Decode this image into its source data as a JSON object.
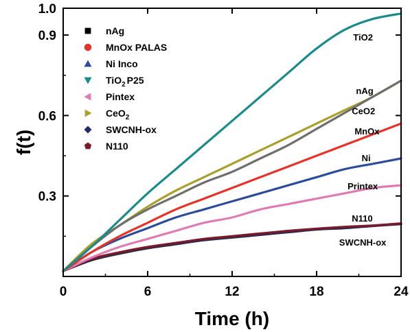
{
  "chart_data": {
    "type": "line",
    "title": "",
    "xlabel": "Time (h)",
    "ylabel": "f(t)",
    "xlim": [
      0,
      24
    ],
    "ylim": [
      0,
      1.0
    ],
    "xticks": [
      "0",
      "6",
      "12",
      "18",
      "24"
    ],
    "xtick_values": [
      0,
      6,
      12,
      18,
      24
    ],
    "yticks": [
      "0.3",
      "0.6",
      "0.9",
      "1.0"
    ],
    "ytick_values": [
      0.3,
      0.6,
      0.9,
      1.0
    ],
    "grid": false,
    "legend_position": "top-left",
    "x": [
      0,
      2,
      4,
      6,
      8,
      10,
      12,
      14,
      16,
      18,
      20,
      22,
      24
    ],
    "series": [
      {
        "name": "nAg",
        "marker": "square",
        "color": "#000000",
        "line_color": "#6e6e6e",
        "values": [
          0.02,
          0.11,
          0.19,
          0.25,
          0.3,
          0.35,
          0.39,
          0.44,
          0.49,
          0.55,
          0.61,
          0.67,
          0.73
        ]
      },
      {
        "name": "MnOx PALAS",
        "marker": "circle",
        "color": "#e5332a",
        "line_color": "#e5332a",
        "values": [
          0.02,
          0.09,
          0.15,
          0.2,
          0.25,
          0.29,
          0.33,
          0.37,
          0.41,
          0.45,
          0.49,
          0.53,
          0.57
        ]
      },
      {
        "name": "Ni Inco",
        "marker": "triangle-up",
        "color": "#2b4c9b",
        "line_color": "#2b4c9b",
        "values": [
          0.02,
          0.09,
          0.14,
          0.18,
          0.22,
          0.25,
          0.28,
          0.31,
          0.34,
          0.37,
          0.4,
          0.42,
          0.44
        ]
      },
      {
        "name": "TiO2 P25",
        "marker": "triangle-down",
        "color": "#1a8a8a",
        "line_color": "#1a8a8a",
        "values": [
          0.02,
          0.11,
          0.21,
          0.31,
          0.4,
          0.49,
          0.58,
          0.67,
          0.76,
          0.85,
          0.92,
          0.96,
          0.98
        ]
      },
      {
        "name": "Pintex",
        "marker": "triangle-left",
        "color": "#e07ab3",
        "line_color": "#e07ab3",
        "values": [
          0.02,
          0.07,
          0.11,
          0.14,
          0.17,
          0.2,
          0.22,
          0.25,
          0.27,
          0.29,
          0.31,
          0.33,
          0.34
        ]
      },
      {
        "name": "CeO2",
        "marker": "triangle-right",
        "color": "#a8a02a",
        "line_color": "#a8a02a",
        "values": [
          0.02,
          0.12,
          0.19,
          0.26,
          0.32,
          0.37,
          0.42,
          0.47,
          0.52,
          0.57,
          0.62,
          0.67,
          0.73
        ]
      },
      {
        "name": "SWCNH-ox",
        "marker": "diamond",
        "color": "#1f2a6b",
        "line_color": "#2a2a4a",
        "values": [
          0.02,
          0.06,
          0.085,
          0.105,
          0.12,
          0.135,
          0.145,
          0.155,
          0.165,
          0.175,
          0.18,
          0.188,
          0.195
        ]
      },
      {
        "name": "N110",
        "marker": "pentagon",
        "color": "#7a1a2a",
        "line_color": "#7a1a2a",
        "values": [
          0.02,
          0.065,
          0.09,
          0.11,
          0.125,
          0.14,
          0.15,
          0.16,
          0.17,
          0.178,
          0.185,
          0.19,
          0.198
        ]
      }
    ],
    "legend_labels": {
      "nAg": "nAg",
      "MnOx PALAS": "MnOx PALAS",
      "Ni Inco": "Ni Inco",
      "TiO2 P25": "TiO",
      "TiO2 P25_sub": "2",
      "TiO2 P25_tail": "P25",
      "Pintex": "Pintex",
      "CeO2": "CeO",
      "CeO2_sub": "2",
      "SWCNH-ox": "SWCNH-ox",
      "N110": "N110"
    },
    "annotations": [
      {
        "text": "TiO2",
        "x": 20.6,
        "y": 0.88
      },
      {
        "text": "nAg",
        "x": 20.8,
        "y": 0.68
      },
      {
        "text": "CeO2",
        "x": 20.5,
        "y": 0.605
      },
      {
        "text": "MnOx",
        "x": 20.7,
        "y": 0.53
      },
      {
        "text": "Ni",
        "x": 21.2,
        "y": 0.43
      },
      {
        "text": "Printex",
        "x": 20.2,
        "y": 0.325
      },
      {
        "text": "N110",
        "x": 20.5,
        "y": 0.205
      },
      {
        "text": "SWCNH-ox",
        "x": 19.6,
        "y": 0.115
      }
    ]
  }
}
